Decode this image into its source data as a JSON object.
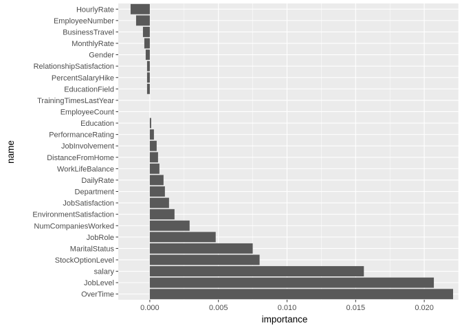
{
  "chart_data": {
    "type": "bar",
    "orientation": "horizontal",
    "xlabel": "importance",
    "ylabel": "name",
    "xlim": [
      -0.0023,
      0.0225
    ],
    "x_ticks": [
      0.0,
      0.005,
      0.01,
      0.015,
      0.02
    ],
    "x_tick_labels": [
      "0.000",
      "0.005",
      "0.010",
      "0.015",
      "0.020"
    ],
    "grid": true,
    "background": "#ebebeb",
    "grid_major_color": "#ffffff",
    "bar_color": "#595959",
    "categories": [
      "HourlyRate",
      "EmployeeNumber",
      "BusinessTravel",
      "MonthlyRate",
      "Gender",
      "RelationshipSatisfaction",
      "PercentSalaryHike",
      "EducationField",
      "TrainingTimesLastYear",
      "EmployeeCount",
      "Education",
      "PerformanceRating",
      "JobInvolvement",
      "DistanceFromHome",
      "WorkLifeBalance",
      "DailyRate",
      "Department",
      "JobSatisfaction",
      "EnvironmentSatisfaction",
      "NumCompaniesWorked",
      "JobRole",
      "MaritalStatus",
      "StockOptionLevel",
      "salary",
      "JobLevel",
      "OverTime"
    ],
    "values": [
      -0.0014,
      -0.001,
      -0.0005,
      -0.0004,
      -0.0003,
      -0.0002,
      -0.0002,
      -0.0002,
      0.0,
      0.0,
      0.0001,
      0.0003,
      0.0005,
      0.0006,
      0.0007,
      0.001,
      0.0011,
      0.0014,
      0.0018,
      0.0029,
      0.0048,
      0.0075,
      0.008,
      0.0156,
      0.0207,
      0.0221
    ]
  }
}
